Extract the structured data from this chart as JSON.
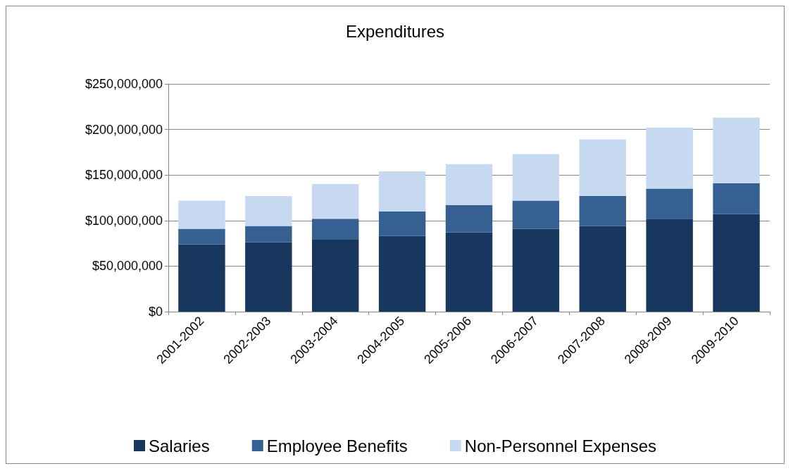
{
  "chart_data": {
    "type": "bar",
    "title": "Expenditures",
    "stacked": true,
    "grid": "y",
    "legend": "bottom",
    "categories": [
      "2001-2002",
      "2002-2003",
      "2003-2004",
      "2004-2005",
      "2005-2006",
      "2006-2007",
      "2007-2008",
      "2008-2009",
      "2009-2010"
    ],
    "ylim": [
      0,
      250000000
    ],
    "yticks": [
      {
        "value": 0,
        "label": "$0"
      },
      {
        "value": 50000000,
        "label": "$50,000,000"
      },
      {
        "value": 100000000,
        "label": "$100,000,000"
      },
      {
        "value": 150000000,
        "label": "$150,000,000"
      },
      {
        "value": 200000000,
        "label": "$200,000,000"
      },
      {
        "value": 250000000,
        "label": "$250,000,000"
      }
    ],
    "series": [
      {
        "name": "Salaries",
        "color": "#17375e",
        "values": [
          74000000,
          76000000,
          79000000,
          83000000,
          87000000,
          91000000,
          94000000,
          102000000,
          107000000
        ]
      },
      {
        "name": "Employee Benefits",
        "color": "#376092",
        "values": [
          17000000,
          18000000,
          23000000,
          27000000,
          30000000,
          31000000,
          33000000,
          33000000,
          34000000
        ]
      },
      {
        "name": "Non-Personnel Expenses",
        "color": "#c6d9f1",
        "values": [
          31000000,
          33000000,
          38000000,
          44000000,
          45000000,
          51000000,
          62000000,
          67000000,
          72000000
        ]
      }
    ]
  }
}
